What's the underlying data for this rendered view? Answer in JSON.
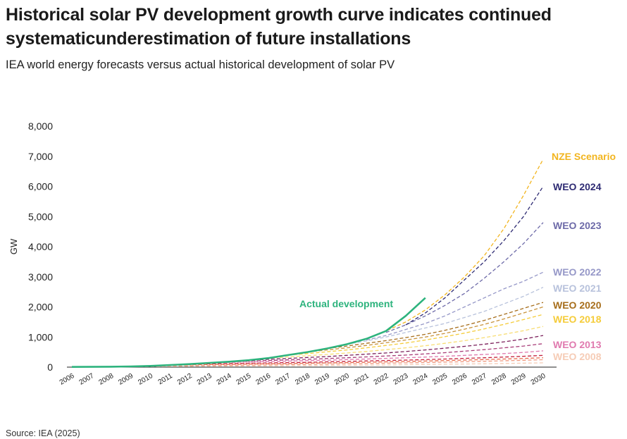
{
  "title": "Historical solar PV development growth curve indicates continued systematicunderestimation of future installations",
  "subtitle": "IEA world energy forecasts versus actual historical development of solar PV",
  "source": "Source: IEA (2025)",
  "chart_data": {
    "type": "line",
    "ylabel": "GW",
    "ylim": [
      0,
      8000
    ],
    "yticks": [
      "0",
      "1,000",
      "2,000",
      "3,000",
      "4,000",
      "5,000",
      "6,000",
      "7,000",
      "8,000"
    ],
    "ytick_values": [
      0,
      1000,
      2000,
      3000,
      4000,
      5000,
      6000,
      7000,
      8000
    ],
    "x": [
      2006,
      2007,
      2008,
      2009,
      2010,
      2011,
      2012,
      2013,
      2014,
      2015,
      2016,
      2017,
      2018,
      2019,
      2020,
      2021,
      2022,
      2023,
      2024,
      2025,
      2026,
      2027,
      2028,
      2029,
      2030
    ],
    "grid": false,
    "series": [
      {
        "name": "Actual development",
        "color": "#2db37d",
        "style": "solid",
        "x": [
          2006,
          2007,
          2008,
          2009,
          2010,
          2011,
          2012,
          2013,
          2014,
          2015,
          2016,
          2017,
          2018,
          2019,
          2020,
          2021,
          2022,
          2023,
          2024
        ],
        "values": [
          7,
          9,
          15,
          23,
          40,
          70,
          100,
          140,
          180,
          230,
          300,
          400,
          500,
          620,
          760,
          940,
          1200,
          1700,
          2300
        ]
      },
      {
        "name": "NZE Scenario",
        "color": "#f2b51f",
        "style": "dashed",
        "x": [
          2021,
          2022,
          2023,
          2024,
          2025,
          2026,
          2027,
          2028,
          2029,
          2030
        ],
        "values": [
          940,
          1200,
          1500,
          1900,
          2400,
          3000,
          3700,
          4600,
          5700,
          6900
        ]
      },
      {
        "name": "WEO 2024",
        "color": "#2e2b73",
        "style": "dashed",
        "x": [
          2023,
          2024,
          2025,
          2026,
          2027,
          2028,
          2029,
          2030
        ],
        "values": [
          1400,
          1800,
          2300,
          2900,
          3500,
          4200,
          5000,
          6000
        ]
      },
      {
        "name": "WEO 2023",
        "color": "#6d6aa8",
        "style": "dashed",
        "x": [
          2022,
          2023,
          2024,
          2025,
          2026,
          2027,
          2028,
          2029,
          2030
        ],
        "values": [
          1150,
          1400,
          1700,
          2050,
          2450,
          2950,
          3500,
          4100,
          4800
        ]
      },
      {
        "name": "WEO 2022",
        "color": "#9698c8",
        "style": "dashed",
        "x": [
          2021,
          2022,
          2023,
          2024,
          2025,
          2026,
          2027,
          2028,
          2029,
          2030
        ],
        "values": [
          900,
          1050,
          1250,
          1450,
          1700,
          2000,
          2300,
          2600,
          2850,
          3150
        ]
      },
      {
        "name": "WEO 2021",
        "color": "#b8c2dc",
        "style": "dashed",
        "x": [
          2020,
          2021,
          2022,
          2023,
          2024,
          2025,
          2026,
          2027,
          2028,
          2029,
          2030
        ],
        "values": [
          760,
          870,
          1000,
          1150,
          1300,
          1450,
          1650,
          1850,
          2100,
          2350,
          2650
        ]
      },
      {
        "name": "WEO 2020",
        "color": "#a76e1c",
        "style": "dashed",
        "x": [
          2019,
          2020,
          2021,
          2022,
          2023,
          2024,
          2025,
          2026,
          2027,
          2028,
          2029,
          2030
        ],
        "values": [
          620,
          700,
          790,
          880,
          980,
          1090,
          1220,
          1380,
          1550,
          1750,
          1950,
          2150
        ]
      },
      {
        "name": "",
        "color": "#c8923a",
        "style": "dashed",
        "x": [
          2018,
          2019,
          2020,
          2021,
          2022,
          2023,
          2024,
          2025,
          2026,
          2027,
          2028,
          2029,
          2030
        ],
        "values": [
          500,
          570,
          640,
          720,
          810,
          900,
          1000,
          1120,
          1260,
          1420,
          1600,
          1800,
          2000
        ]
      },
      {
        "name": "WEO 2018",
        "color": "#f5cc3a",
        "style": "dashed",
        "x": [
          2017,
          2018,
          2019,
          2020,
          2021,
          2022,
          2023,
          2024,
          2025,
          2026,
          2027,
          2028,
          2029,
          2030
        ],
        "values": [
          400,
          450,
          510,
          570,
          640,
          720,
          800,
          900,
          1010,
          1130,
          1270,
          1420,
          1580,
          1750
        ]
      },
      {
        "name": "",
        "color": "#f8dd73",
        "style": "dashed",
        "x": [
          2016,
          2017,
          2018,
          2019,
          2020,
          2021,
          2022,
          2023,
          2024,
          2025,
          2026,
          2027,
          2028,
          2029,
          2030
        ],
        "values": [
          300,
          340,
          380,
          420,
          470,
          520,
          580,
          640,
          710,
          790,
          880,
          980,
          1090,
          1210,
          1350
        ]
      },
      {
        "name": "",
        "color": "#7a1e5a",
        "style": "dashed",
        "x": [
          2015,
          2016,
          2017,
          2018,
          2019,
          2020,
          2021,
          2022,
          2023,
          2024,
          2025,
          2026,
          2027,
          2028,
          2029,
          2030
        ],
        "values": [
          230,
          260,
          290,
          320,
          350,
          390,
          430,
          470,
          520,
          570,
          630,
          690,
          760,
          840,
          930,
          1050
        ]
      },
      {
        "name": "",
        "color": "#a83c78",
        "style": "dashed",
        "x": [
          2014,
          2015,
          2016,
          2017,
          2018,
          2019,
          2020,
          2021,
          2022,
          2023,
          2024,
          2025,
          2026,
          2027,
          2028,
          2029,
          2030
        ],
        "values": [
          180,
          200,
          220,
          240,
          260,
          285,
          310,
          340,
          370,
          400,
          440,
          480,
          530,
          580,
          640,
          700,
          780
        ]
      },
      {
        "name": "WEO 2013",
        "color": "#e07aaf",
        "style": "dashed",
        "x": [
          2013,
          2014,
          2015,
          2016,
          2017,
          2018,
          2019,
          2020,
          2021,
          2022,
          2023,
          2024,
          2025,
          2026,
          2027,
          2028,
          2029,
          2030
        ],
        "values": [
          140,
          155,
          170,
          185,
          200,
          215,
          230,
          250,
          270,
          290,
          310,
          335,
          360,
          390,
          420,
          450,
          490,
          540
        ]
      },
      {
        "name": "",
        "color": "#c41f3b",
        "style": "dashed",
        "x": [
          2012,
          2013,
          2014,
          2015,
          2016,
          2017,
          2018,
          2019,
          2020,
          2021,
          2022,
          2023,
          2024,
          2025,
          2026,
          2027,
          2028,
          2029,
          2030
        ],
        "values": [
          100,
          110,
          120,
          130,
          140,
          150,
          160,
          175,
          190,
          205,
          220,
          235,
          250,
          270,
          290,
          310,
          335,
          360,
          390
        ]
      },
      {
        "name": "",
        "color": "#e8684a",
        "style": "dashed",
        "x": [
          2011,
          2012,
          2013,
          2014,
          2015,
          2016,
          2017,
          2018,
          2019,
          2020,
          2021,
          2022,
          2023,
          2024,
          2025,
          2026,
          2027,
          2028,
          2029,
          2030
        ],
        "values": [
          70,
          78,
          86,
          94,
          102,
          110,
          120,
          130,
          140,
          150,
          162,
          175,
          188,
          202,
          217,
          233,
          250,
          268,
          288,
          310
        ]
      },
      {
        "name": "",
        "color": "#f09a80",
        "style": "dashed",
        "x": [
          2010,
          2011,
          2012,
          2013,
          2014,
          2015,
          2016,
          2017,
          2018,
          2019,
          2020,
          2021,
          2022,
          2023,
          2024,
          2025,
          2026,
          2027,
          2028,
          2029,
          2030
        ],
        "values": [
          40,
          46,
          52,
          58,
          64,
          70,
          77,
          84,
          92,
          100,
          110,
          120,
          130,
          141,
          153,
          166,
          180,
          195,
          211,
          228,
          246
        ]
      },
      {
        "name": "WEO 2008",
        "color": "#f6ccb6",
        "style": "dashed",
        "x": [
          2008,
          2009,
          2010,
          2011,
          2012,
          2013,
          2014,
          2015,
          2016,
          2017,
          2018,
          2019,
          2020,
          2021,
          2022,
          2023,
          2024,
          2025,
          2026,
          2027,
          2028,
          2029,
          2030
        ],
        "values": [
          15,
          18,
          21,
          24,
          27,
          30,
          34,
          38,
          42,
          46,
          51,
          56,
          61,
          67,
          73,
          80,
          87,
          95,
          103,
          112,
          122,
          132,
          143
        ]
      }
    ],
    "annotations": [
      {
        "text": "Actual development",
        "color": "#2db37d"
      },
      {
        "text": "NZE Scenario",
        "color": "#f2b51f"
      },
      {
        "text": "WEO 2024",
        "color": "#2e2b73"
      },
      {
        "text": "WEO 2023",
        "color": "#6d6aa8"
      },
      {
        "text": "WEO 2022",
        "color": "#9698c8"
      },
      {
        "text": "WEO 2021",
        "color": "#b8c2dc"
      },
      {
        "text": "WEO 2020",
        "color": "#a76e1c"
      },
      {
        "text": "WEO 2018",
        "color": "#f5cc3a"
      },
      {
        "text": "WEO 2013",
        "color": "#e07aaf"
      },
      {
        "text": "WEO 2008",
        "color": "#f6ccb6"
      }
    ]
  }
}
